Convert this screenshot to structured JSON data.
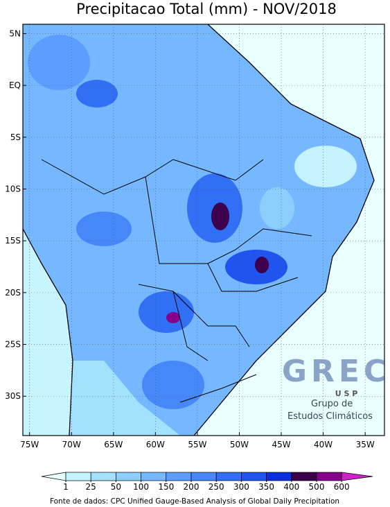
{
  "map": {
    "title": "Precipitacao Total (mm) - NOV/2018",
    "xlim": [
      -75.8,
      -32.7
    ],
    "ylim": [
      -33.8,
      5.9
    ],
    "lat_ticks": [
      {
        "value": 5,
        "label": "5N"
      },
      {
        "value": 0,
        "label": "EQ"
      },
      {
        "value": -5,
        "label": "5S"
      },
      {
        "value": -10,
        "label": "10S"
      },
      {
        "value": -15,
        "label": "15S"
      },
      {
        "value": -20,
        "label": "20S"
      },
      {
        "value": -25,
        "label": "25S"
      },
      {
        "value": -30,
        "label": "30S"
      }
    ],
    "lon_ticks": [
      {
        "value": -75,
        "label": "75W"
      },
      {
        "value": -70,
        "label": "70W"
      },
      {
        "value": -65,
        "label": "65W"
      },
      {
        "value": -60,
        "label": "60W"
      },
      {
        "value": -55,
        "label": "55W"
      },
      {
        "value": -50,
        "label": "50W"
      },
      {
        "value": -45,
        "label": "45W"
      },
      {
        "value": -40,
        "label": "40W"
      },
      {
        "value": -35,
        "label": "35W"
      }
    ],
    "grid": true
  },
  "colorbar": {
    "ticks": [
      1,
      25,
      50,
      100,
      150,
      200,
      250,
      300,
      350,
      400,
      500,
      600
    ],
    "colors": [
      "#e8ffff",
      "#c4f2ff",
      "#a2e2ff",
      "#8ccfff",
      "#76b8ff",
      "#5c9eff",
      "#4687fa",
      "#316ff5",
      "#1f55ee",
      "#0b2fdc",
      "#3c004c",
      "#86008c",
      "#cc22cc"
    ]
  },
  "source": "Fonte de dados: CPC Unified Gauge-Based Analysis of Global Daily Precipitation",
  "logo": {
    "name": "GREC",
    "org": "U S P",
    "line1": "Grupo de",
    "line2": "Estudos Climáticos"
  }
}
